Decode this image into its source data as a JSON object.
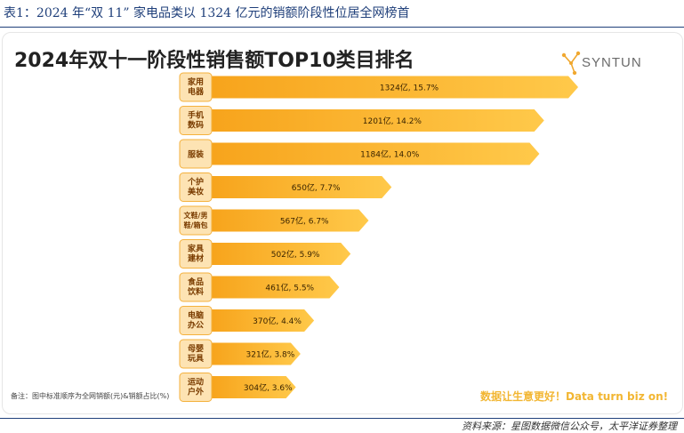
{
  "caption": "表1：2024 年“双 11” 家电品类以 1324 亿元的销额阶段性位居全网榜首",
  "logo_text": "SYNTUN",
  "note": "备注：图中标准顺序为全网销额(元)&销额占比(%)",
  "slogan": "数据让生意更好！Data turn biz on!",
  "source": "资料来源：星图数据微信公众号，太平洋证券整理",
  "colors": {
    "bar_start": "#f7a41c",
    "bar_end": "#ffc94a",
    "badge_bg": "#fde3b3",
    "badge_border": "#f4b13d",
    "caption": "#1f3f7a"
  },
  "chart_data": {
    "type": "bar",
    "orientation": "horizontal",
    "title": "2024年双十一阶段性销售额TOP10类目排名",
    "categories": [
      [
        "家用",
        "电器"
      ],
      [
        "手机",
        "数码"
      ],
      [
        "服装"
      ],
      [
        "个护",
        "美妆"
      ],
      [
        "文鞋/男",
        "鞋/箱包"
      ],
      [
        "家具",
        "建材"
      ],
      [
        "食品",
        "饮料"
      ],
      [
        "电脑",
        "办公"
      ],
      [
        "母婴",
        "玩具"
      ],
      [
        "运动",
        "户外"
      ]
    ],
    "values": [
      1324,
      1201,
      1184,
      650,
      567,
      502,
      461,
      370,
      321,
      304
    ],
    "labels": [
      "1324亿, 15.7%",
      "1201亿, 14.2%",
      "1184亿, 14.0%",
      "650亿, 7.7%",
      "567亿, 6.7%",
      "502亿, 5.9%",
      "461亿, 5.5%",
      "370亿, 4.4%",
      "321亿, 3.8%",
      "304亿, 3.6%"
    ],
    "units": "亿"
  }
}
